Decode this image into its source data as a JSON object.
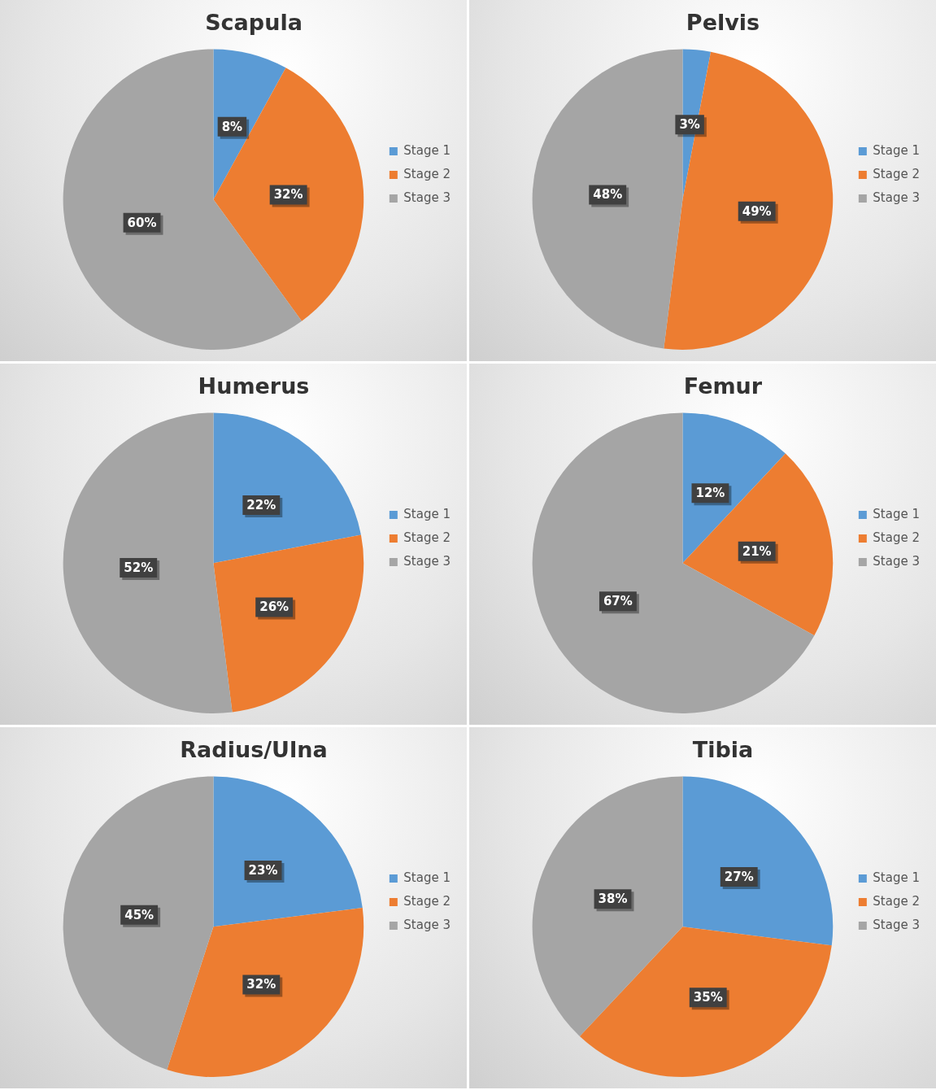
{
  "chart_data": [
    {
      "type": "pie",
      "title": "Scapula",
      "categories": [
        "Stage 1",
        "Stage 2",
        "Stage 3"
      ],
      "values": [
        8,
        32,
        60
      ],
      "value_labels": [
        "8%",
        "32%",
        "60%"
      ],
      "colors": [
        "#5b9bd5",
        "#ed7d31",
        "#a5a5a5"
      ],
      "legend": "right"
    },
    {
      "type": "pie",
      "title": "Pelvis",
      "categories": [
        "Stage 1",
        "Stage 2",
        "Stage 3"
      ],
      "values": [
        3,
        49,
        48
      ],
      "value_labels": [
        "3%",
        "49%",
        "48%"
      ],
      "colors": [
        "#5b9bd5",
        "#ed7d31",
        "#a5a5a5"
      ],
      "legend": "right"
    },
    {
      "type": "pie",
      "title": "Humerus",
      "categories": [
        "Stage 1",
        "Stage 2",
        "Stage 3"
      ],
      "values": [
        22,
        26,
        52
      ],
      "value_labels": [
        "22%",
        "26%",
        "52%"
      ],
      "colors": [
        "#5b9bd5",
        "#ed7d31",
        "#a5a5a5"
      ],
      "legend": "right"
    },
    {
      "type": "pie",
      "title": "Femur",
      "categories": [
        "Stage 1",
        "Stage 2",
        "Stage 3"
      ],
      "values": [
        12,
        21,
        67
      ],
      "value_labels": [
        "12%",
        "21%",
        "67%"
      ],
      "colors": [
        "#5b9bd5",
        "#ed7d31",
        "#a5a5a5"
      ],
      "legend": "right"
    },
    {
      "type": "pie",
      "title": "Radius/Ulna",
      "categories": [
        "Stage 1",
        "Stage 2",
        "Stage 3"
      ],
      "values": [
        23,
        32,
        45
      ],
      "value_labels": [
        "23%",
        "32%",
        "45%"
      ],
      "colors": [
        "#5b9bd5",
        "#ed7d31",
        "#a5a5a5"
      ],
      "legend": "right"
    },
    {
      "type": "pie",
      "title": "Tibia",
      "categories": [
        "Stage 1",
        "Stage 2",
        "Stage 3"
      ],
      "values": [
        27,
        35,
        38
      ],
      "value_labels": [
        "27%",
        "35%",
        "38%"
      ],
      "colors": [
        "#5b9bd5",
        "#ed7d31",
        "#a5a5a5"
      ],
      "legend": "right"
    }
  ]
}
